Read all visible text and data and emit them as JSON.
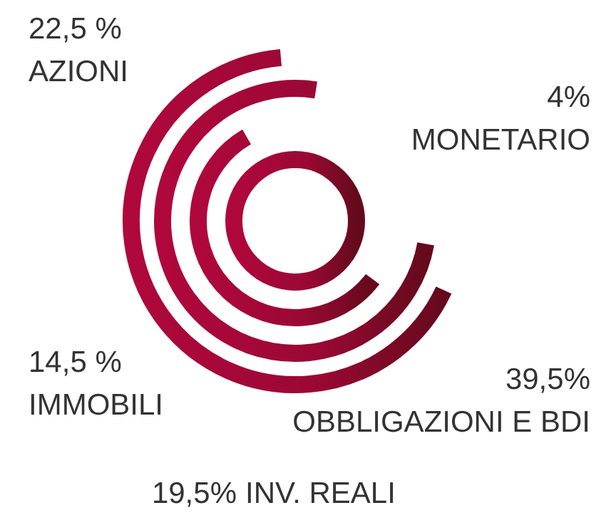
{
  "chart_data": {
    "type": "other",
    "categories": [
      "AZIONI",
      "MONETARIO",
      "IMMOBILI",
      "OBBLIGAZIONI E BDI",
      "INV. REALI"
    ],
    "values": [
      22.5,
      4,
      14.5,
      39.5,
      19.5
    ],
    "value_labels": [
      "22,5 %",
      "4%",
      "14,5 %",
      "39,5%",
      "19,5%"
    ]
  }
}
